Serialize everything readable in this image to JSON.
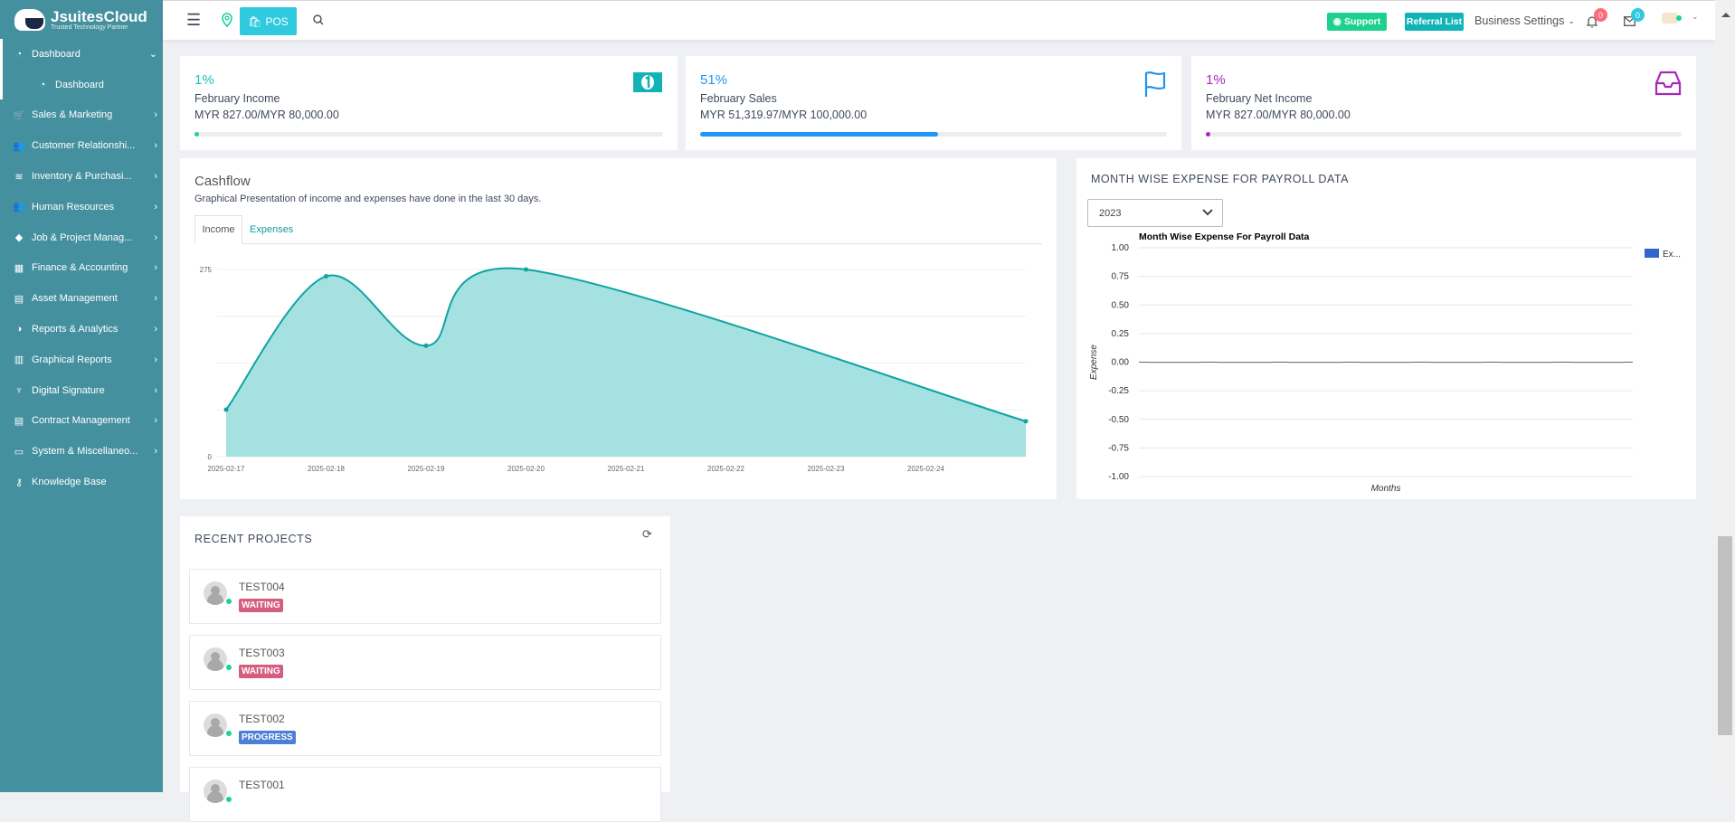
{
  "brand": {
    "name": "JsuitesCloud",
    "tagline": "Trusted Technology Partner"
  },
  "topbar": {
    "pos_label": "POS",
    "support_label": "Support",
    "referral_label": "Referral List",
    "business_settings_label": "Business Settings",
    "notifications_count": "0",
    "messages_count": "0"
  },
  "sidebar": {
    "items": [
      {
        "label": "Dashboard",
        "icon": "gauge-icon",
        "expanded": true
      },
      {
        "label": "Dashboard",
        "icon": "gauge-icon",
        "sub": true
      },
      {
        "label": "Sales & Marketing",
        "icon": "cart-icon"
      },
      {
        "label": "Customer Relationshi...",
        "icon": "users-icon"
      },
      {
        "label": "Inventory & Purchasi...",
        "icon": "layers-icon"
      },
      {
        "label": "Human Resources",
        "icon": "users-icon"
      },
      {
        "label": "Job & Project Manag...",
        "icon": "diamond-icon"
      },
      {
        "label": "Finance & Accounting",
        "icon": "calculator-icon"
      },
      {
        "label": "Asset Management",
        "icon": "document-icon"
      },
      {
        "label": "Reports & Analytics",
        "icon": "pie-icon"
      },
      {
        "label": "Graphical Reports",
        "icon": "bar-chart-icon"
      },
      {
        "label": "Digital Signature",
        "icon": "trophy-icon"
      },
      {
        "label": "Contract Management",
        "icon": "document-icon"
      },
      {
        "label": "System & Miscellaneo...",
        "icon": "folder-icon"
      },
      {
        "label": "Knowledge Base",
        "icon": "key-icon",
        "no_chevron": true
      }
    ]
  },
  "stats": [
    {
      "percent": "1%",
      "title": "February Income",
      "amount": "MYR 827.00/MYR 80,000.00",
      "progress": 1,
      "color": "#1cc3b8",
      "bar_color": "#1cd1a1",
      "icon": "money-icon"
    },
    {
      "percent": "51%",
      "title": "February Sales",
      "amount": "MYR 51,319.97/MYR 100,000.00",
      "progress": 51,
      "color": "#2196f3",
      "bar_color": "#2196f3",
      "icon": "flag-icon"
    },
    {
      "percent": "1%",
      "title": "February Net Income",
      "amount": "MYR 827.00/MYR 80,000.00",
      "progress": 1,
      "color": "#a62ab7",
      "bar_color": "#a62ab7",
      "icon": "inbox-icon"
    }
  ],
  "cashflow": {
    "title": "Cashflow",
    "subtitle": "Graphical Presentation of income and expenses have done in the last 30 days.",
    "tabs": [
      "Income",
      "Expenses"
    ],
    "active_tab": "Income"
  },
  "payroll": {
    "title": "MONTH WISE EXPENSE FOR PAYROLL DATA",
    "year": "2023"
  },
  "projects": {
    "title": "RECENT PROJECTS",
    "items": [
      {
        "name": "TEST004",
        "status": "WAITING",
        "status_color": "#d55d80"
      },
      {
        "name": "TEST003",
        "status": "WAITING",
        "status_color": "#d55d80"
      },
      {
        "name": "TEST002",
        "status": "PROGRESS",
        "status_color": "#4c7fd6"
      },
      {
        "name": "TEST001",
        "status": "",
        "status_color": ""
      }
    ]
  },
  "chart_data": [
    {
      "type": "area",
      "x": [
        "2025-02-17",
        "2025-02-18",
        "2025-02-19",
        "2025-02-20",
        "2025-02-25"
      ],
      "values": [
        69,
        265,
        163,
        275,
        52
      ],
      "xticks": [
        "2025-02-17",
        "2025-02-18",
        "2025-02-19",
        "2025-02-20",
        "2025-02-21",
        "2025-02-22",
        "2025-02-23",
        "2025-02-24"
      ],
      "yticks": [
        "0",
        "275"
      ],
      "ylim": [
        0,
        275
      ],
      "color": "#0fa3a3",
      "fill": "#a6e1e2",
      "grid": true
    },
    {
      "type": "bar",
      "title": "Month Wise Expense For Payroll Data",
      "xlabel": "Months",
      "ylabel": "Expense",
      "series": [
        {
          "name": "Ex...",
          "values": [
            0,
            0,
            0,
            0,
            0,
            0,
            0
          ]
        }
      ],
      "yticks": [
        "1.00",
        "0.75",
        "0.50",
        "0.25",
        "0.00",
        "-0.25",
        "-0.50",
        "-0.75",
        "-1.00"
      ],
      "ylim": [
        -1,
        1
      ],
      "legend": "top-right",
      "color": "#3366cc",
      "grid": true
    }
  ]
}
